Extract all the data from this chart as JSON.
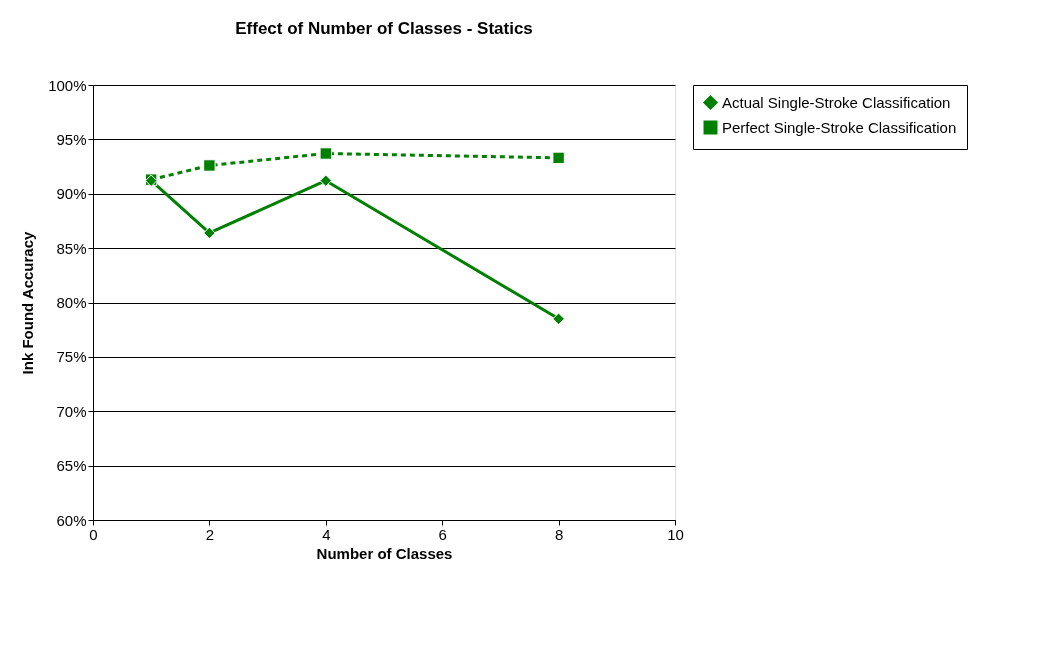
{
  "chart_data": {
    "type": "line",
    "title": "Effect of Number of Classes - Statics",
    "xlabel": "Number of Classes",
    "ylabel": "Ink Found Accuracy",
    "x": [
      1,
      2,
      4,
      8
    ],
    "series": [
      {
        "name": "Actual Single-Stroke Classification",
        "color": "#008000",
        "values": [
          91.2,
          86.4,
          91.2,
          78.5
        ],
        "marker": "diamond",
        "line_style": "solid"
      },
      {
        "name": "Perfect Single-Stroke Classification",
        "color": "#008000",
        "values": [
          91.3,
          92.6,
          93.7,
          93.3
        ],
        "marker": "square",
        "line_style": "dashed"
      }
    ],
    "xlim": [
      0,
      10
    ],
    "xticks": [
      0,
      2,
      4,
      6,
      8,
      10
    ],
    "ylim": [
      60,
      100
    ],
    "yticks": [
      {
        "value": 60,
        "label": "60%"
      },
      {
        "value": 65,
        "label": "65%"
      },
      {
        "value": 70,
        "label": "70%"
      },
      {
        "value": 75,
        "label": "75%"
      },
      {
        "value": 80,
        "label": "80%"
      },
      {
        "value": 85,
        "label": "85%"
      },
      {
        "value": 90,
        "label": "90%"
      },
      {
        "value": 95,
        "label": "95%"
      },
      {
        "value": 100,
        "label": "100%"
      }
    ],
    "grid": "y",
    "legend": "right"
  }
}
